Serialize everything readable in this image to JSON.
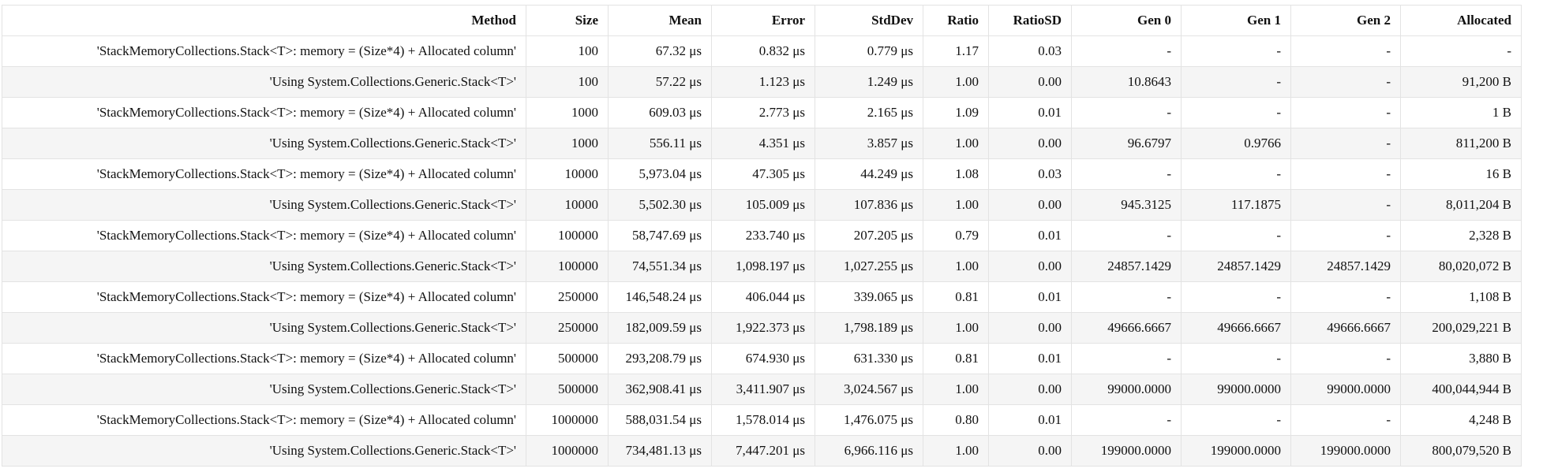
{
  "table": {
    "headers": [
      "Method",
      "Size",
      "Mean",
      "Error",
      "StdDev",
      "Ratio",
      "RatioSD",
      "Gen 0",
      "Gen 1",
      "Gen 2",
      "Allocated"
    ],
    "rows": [
      [
        "'StackMemoryCollections.Stack<T>: memory = (Size*4) + Allocated column'",
        "100",
        "67.32 μs",
        "0.832 μs",
        "0.779 μs",
        "1.17",
        "0.03",
        "-",
        "-",
        "-",
        "-"
      ],
      [
        "'Using System.Collections.Generic.Stack<T>'",
        "100",
        "57.22 μs",
        "1.123 μs",
        "1.249 μs",
        "1.00",
        "0.00",
        "10.8643",
        "-",
        "-",
        "91,200 B"
      ],
      [
        "'StackMemoryCollections.Stack<T>: memory = (Size*4) + Allocated column'",
        "1000",
        "609.03 μs",
        "2.773 μs",
        "2.165 μs",
        "1.09",
        "0.01",
        "-",
        "-",
        "-",
        "1 B"
      ],
      [
        "'Using System.Collections.Generic.Stack<T>'",
        "1000",
        "556.11 μs",
        "4.351 μs",
        "3.857 μs",
        "1.00",
        "0.00",
        "96.6797",
        "0.9766",
        "-",
        "811,200 B"
      ],
      [
        "'StackMemoryCollections.Stack<T>: memory = (Size*4) + Allocated column'",
        "10000",
        "5,973.04 μs",
        "47.305 μs",
        "44.249 μs",
        "1.08",
        "0.03",
        "-",
        "-",
        "-",
        "16 B"
      ],
      [
        "'Using System.Collections.Generic.Stack<T>'",
        "10000",
        "5,502.30 μs",
        "105.009 μs",
        "107.836 μs",
        "1.00",
        "0.00",
        "945.3125",
        "117.1875",
        "-",
        "8,011,204 B"
      ],
      [
        "'StackMemoryCollections.Stack<T>: memory = (Size*4) + Allocated column'",
        "100000",
        "58,747.69 μs",
        "233.740 μs",
        "207.205 μs",
        "0.79",
        "0.01",
        "-",
        "-",
        "-",
        "2,328 B"
      ],
      [
        "'Using System.Collections.Generic.Stack<T>'",
        "100000",
        "74,551.34 μs",
        "1,098.197 μs",
        "1,027.255 μs",
        "1.00",
        "0.00",
        "24857.1429",
        "24857.1429",
        "24857.1429",
        "80,020,072 B"
      ],
      [
        "'StackMemoryCollections.Stack<T>: memory = (Size*4) + Allocated column'",
        "250000",
        "146,548.24 μs",
        "406.044 μs",
        "339.065 μs",
        "0.81",
        "0.01",
        "-",
        "-",
        "-",
        "1,108 B"
      ],
      [
        "'Using System.Collections.Generic.Stack<T>'",
        "250000",
        "182,009.59 μs",
        "1,922.373 μs",
        "1,798.189 μs",
        "1.00",
        "0.00",
        "49666.6667",
        "49666.6667",
        "49666.6667",
        "200,029,221 B"
      ],
      [
        "'StackMemoryCollections.Stack<T>: memory = (Size*4) + Allocated column'",
        "500000",
        "293,208.79 μs",
        "674.930 μs",
        "631.330 μs",
        "0.81",
        "0.01",
        "-",
        "-",
        "-",
        "3,880 B"
      ],
      [
        "'Using System.Collections.Generic.Stack<T>'",
        "500000",
        "362,908.41 μs",
        "3,411.907 μs",
        "3,024.567 μs",
        "1.00",
        "0.00",
        "99000.0000",
        "99000.0000",
        "99000.0000",
        "400,044,944 B"
      ],
      [
        "'StackMemoryCollections.Stack<T>: memory = (Size*4) + Allocated column'",
        "1000000",
        "588,031.54 μs",
        "1,578.014 μs",
        "1,476.075 μs",
        "0.80",
        "0.01",
        "-",
        "-",
        "-",
        "4,248 B"
      ],
      [
        "'Using System.Collections.Generic.Stack<T>'",
        "1000000",
        "734,481.13 μs",
        "7,447.201 μs",
        "6,966.116 μs",
        "1.00",
        "0.00",
        "199000.0000",
        "199000.0000",
        "199000.0000",
        "800,079,520 B"
      ]
    ]
  }
}
